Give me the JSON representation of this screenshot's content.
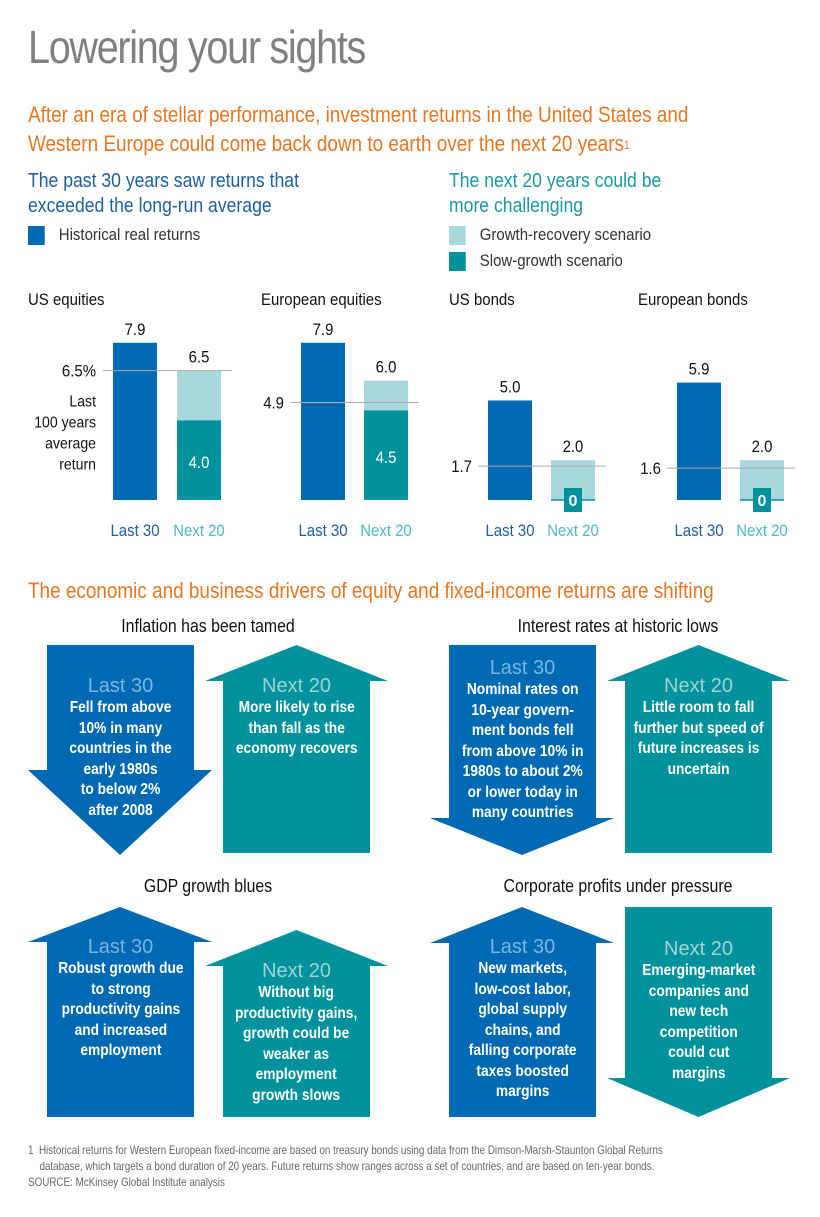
{
  "title": "Lowering your sights",
  "subtitle": {
    "line1": "After an era of stellar performance, investment returns in the United States and",
    "line2": "Western Europe could come back down to earth over the next 20 years",
    "footnote_marker": "1"
  },
  "past_section": {
    "heading_line1": "The past 30 years saw returns that",
    "heading_line2": "exceeded the long-run average",
    "legend": [
      {
        "label": "Historical real returns",
        "color": "#0069b4"
      }
    ]
  },
  "next_section": {
    "heading_line1": "The next 20 years could be",
    "heading_line2": "more challenging",
    "legend": [
      {
        "label": "Growth-recovery scenario",
        "color": "#a8d8dc"
      },
      {
        "label": "Slow-growth scenario",
        "color": "#00929c"
      }
    ]
  },
  "colors": {
    "historical": "#0069b4",
    "growth_recovery": "#a8d8dc",
    "slow_growth": "#00929c",
    "accent_orange": "#e87722",
    "heading_blue": "#1f5fa0",
    "heading_teal": "#1a9aa0",
    "next_label": "#4db8c4",
    "reference_line": "#aaaaaa"
  },
  "chart_data": [
    {
      "type": "bar",
      "title": "US equities",
      "categories": [
        "Last 30",
        "Next 20"
      ],
      "series": [
        {
          "name": "Historical real returns",
          "values": [
            7.9,
            null
          ]
        },
        {
          "name": "Slow-growth scenario",
          "values": [
            null,
            4.0
          ]
        },
        {
          "name": "Growth-recovery scenario",
          "values": [
            null,
            6.5
          ]
        }
      ],
      "labels": {
        "last": "7.9",
        "next_high": "6.5",
        "next_low": "4.0"
      },
      "reference": {
        "value": 6.5,
        "label": "6.5%",
        "note": [
          "Last",
          "100 years",
          "average",
          "return"
        ]
      },
      "ylim": [
        0,
        8
      ]
    },
    {
      "type": "bar",
      "title": "European equities",
      "categories": [
        "Last 30",
        "Next 20"
      ],
      "series": [
        {
          "name": "Historical real returns",
          "values": [
            7.9,
            null
          ]
        },
        {
          "name": "Slow-growth scenario",
          "values": [
            null,
            4.5
          ]
        },
        {
          "name": "Growth-recovery scenario",
          "values": [
            null,
            6.0
          ]
        }
      ],
      "labels": {
        "last": "7.9",
        "next_high": "6.0",
        "next_low": "4.5"
      },
      "reference": {
        "value": 4.9,
        "label": "4.9",
        "note": []
      },
      "ylim": [
        0,
        8
      ]
    },
    {
      "type": "bar",
      "title": "US bonds",
      "categories": [
        "Last 30",
        "Next 20"
      ],
      "series": [
        {
          "name": "Historical real returns",
          "values": [
            5.0,
            null
          ]
        },
        {
          "name": "Slow-growth scenario",
          "values": [
            null,
            0
          ]
        },
        {
          "name": "Growth-recovery scenario",
          "values": [
            null,
            2.0
          ]
        }
      ],
      "labels": {
        "last": "5.0",
        "next_high": "2.0",
        "next_low": "0"
      },
      "reference": {
        "value": 1.7,
        "label": "1.7",
        "note": []
      },
      "ylim": [
        0,
        8
      ]
    },
    {
      "type": "bar",
      "title": "European bonds",
      "categories": [
        "Last 30",
        "Next 20"
      ],
      "series": [
        {
          "name": "Historical real returns",
          "values": [
            5.9,
            null
          ]
        },
        {
          "name": "Slow-growth scenario",
          "values": [
            null,
            0
          ]
        },
        {
          "name": "Growth-recovery scenario",
          "values": [
            null,
            2.0
          ]
        }
      ],
      "labels": {
        "last": "5.9",
        "next_high": "2.0",
        "next_low": "0"
      },
      "reference": {
        "value": 1.6,
        "label": "1.6",
        "note": []
      },
      "ylim": [
        0,
        8
      ]
    }
  ],
  "drivers": {
    "heading": "The economic and business drivers of equity and fixed-income returns are shifting",
    "groups": [
      {
        "title": "Inflation has been tamed",
        "last": {
          "label": "Last 30",
          "direction": "down",
          "text": [
            "Fell from above",
            "10% in many",
            "countries in the",
            "early 1980s",
            "to below 2%",
            "after 2008"
          ]
        },
        "next": {
          "label": "Next 20",
          "direction": "up",
          "text": [
            "More likely to rise",
            "than fall as the",
            "economy recovers"
          ]
        }
      },
      {
        "title": "Interest rates at historic lows",
        "last": {
          "label": "Last 30",
          "direction": "down",
          "text": [
            "Nominal rates on",
            "10-year govern-",
            "ment bonds fell",
            "from above 10% in",
            "1980s to about 2%",
            "or lower today in",
            "many countries"
          ]
        },
        "next": {
          "label": "Next 20",
          "direction": "up",
          "text": [
            "Little room to fall",
            "further but speed of",
            "future increases is",
            "uncertain"
          ]
        }
      },
      {
        "title": "GDP growth blues",
        "last": {
          "label": "Last 30",
          "direction": "up",
          "text": [
            "Robust growth due",
            "to strong",
            "productivity gains",
            "and increased",
            "employment"
          ]
        },
        "next": {
          "label": "Next 20",
          "direction": "up",
          "text": [
            "Without big",
            "productivity gains,",
            "growth could be",
            "weaker as",
            "employment",
            "growth slows"
          ]
        }
      },
      {
        "title": "Corporate profits under pressure",
        "last": {
          "label": "Last 30",
          "direction": "up",
          "text": [
            "New markets,",
            "low-cost labor,",
            "global supply",
            "chains, and",
            "falling corporate",
            "taxes boosted",
            "margins"
          ]
        },
        "next": {
          "label": "Next 20",
          "direction": "down",
          "text": [
            "Emerging-market",
            "companies and",
            "new tech",
            "competition",
            "could cut",
            "margins"
          ]
        }
      }
    ]
  },
  "footnote": {
    "marker": "1",
    "line1": "Historical returns for Western European fixed-income are based on treasury bonds using data from the Dimson-Marsh-Staunton Global Returns",
    "line2": "database, which targets a bond duration of 20 years. Future returns show ranges across a set of countries, and are based on ten-year bonds.",
    "source": "SOURCE: McKinsey Global Institute analysis"
  }
}
